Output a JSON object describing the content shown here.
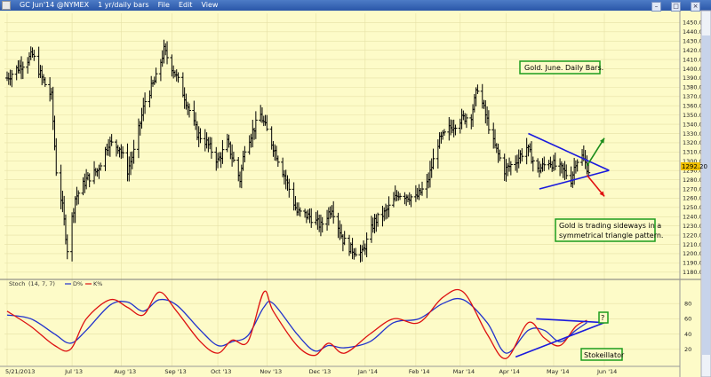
{
  "window": {
    "title": "GC Jun'14 @NYMEX",
    "interval": "1 yr/daily bars",
    "menu": [
      "File",
      "Edit",
      "View"
    ]
  },
  "chart_data": [
    {
      "type": "ohlc",
      "title": "",
      "x_range": [
        "2013-05-21",
        "2014-06-15"
      ],
      "x_labels": [
        "5/21/2013",
        "Jul '13",
        "Aug '13",
        "Sep '13",
        "Oct '13",
        "Nov '13",
        "Dec '13",
        "Jan '14",
        "Feb '14",
        "Mar '14",
        "Apr '14",
        "May '14",
        "Jun '14"
      ],
      "x_label_dates": [
        "2013-05-21",
        "2013-07-01",
        "2013-08-01",
        "2013-09-02",
        "2013-10-01",
        "2013-11-01",
        "2013-12-02",
        "2014-01-02",
        "2014-02-03",
        "2014-03-03",
        "2014-04-01",
        "2014-05-01",
        "2014-06-02"
      ],
      "ylim": [
        1175,
        1460
      ],
      "y_ticks": [
        1180,
        1190,
        1200,
        1210,
        1220,
        1230,
        1240,
        1250,
        1260,
        1270,
        1280,
        1290,
        1300,
        1310,
        1320,
        1330,
        1340,
        1350,
        1360,
        1370,
        1380,
        1390,
        1400,
        1410,
        1420,
        1430,
        1440,
        1450
      ],
      "current_price": "1292.20",
      "price_path": [
        [
          "2013-05-21",
          1390
        ],
        [
          "2013-05-24",
          1395
        ],
        [
          "2013-06-03",
          1410
        ],
        [
          "2013-06-06",
          1415
        ],
        [
          "2013-06-12",
          1390
        ],
        [
          "2013-06-18",
          1370
        ],
        [
          "2013-06-21",
          1290
        ],
        [
          "2013-06-25",
          1250
        ],
        [
          "2013-06-28",
          1205
        ],
        [
          "2013-07-03",
          1260
        ],
        [
          "2013-07-10",
          1280
        ],
        [
          "2013-07-17",
          1290
        ],
        [
          "2013-07-24",
          1320
        ],
        [
          "2013-07-31",
          1315
        ],
        [
          "2013-08-05",
          1290
        ],
        [
          "2013-08-09",
          1310
        ],
        [
          "2013-08-16",
          1365
        ],
        [
          "2013-08-23",
          1390
        ],
        [
          "2013-08-28",
          1420
        ],
        [
          "2013-09-04",
          1395
        ],
        [
          "2013-09-10",
          1370
        ],
        [
          "2013-09-18",
          1330
        ],
        [
          "2013-09-24",
          1320
        ],
        [
          "2013-10-01",
          1300
        ],
        [
          "2013-10-07",
          1320
        ],
        [
          "2013-10-15",
          1280
        ],
        [
          "2013-10-18",
          1315
        ],
        [
          "2013-10-28",
          1350
        ],
        [
          "2013-11-04",
          1320
        ],
        [
          "2013-11-12",
          1285
        ],
        [
          "2013-11-20",
          1245
        ],
        [
          "2013-11-28",
          1240
        ],
        [
          "2013-12-05",
          1230
        ],
        [
          "2013-12-12",
          1250
        ],
        [
          "2013-12-19",
          1215
        ],
        [
          "2013-12-24",
          1205
        ],
        [
          "2013-12-31",
          1200
        ],
        [
          "2014-01-08",
          1235
        ],
        [
          "2014-01-15",
          1245
        ],
        [
          "2014-01-23",
          1265
        ],
        [
          "2014-02-03",
          1260
        ],
        [
          "2014-02-10",
          1275
        ],
        [
          "2014-02-17",
          1320
        ],
        [
          "2014-02-24",
          1335
        ],
        [
          "2014-03-03",
          1345
        ],
        [
          "2014-03-10",
          1350
        ],
        [
          "2014-03-14",
          1380
        ],
        [
          "2014-03-19",
          1350
        ],
        [
          "2014-03-24",
          1320
        ],
        [
          "2014-03-31",
          1290
        ],
        [
          "2014-04-07",
          1300
        ],
        [
          "2014-04-14",
          1315
        ],
        [
          "2014-04-21",
          1290
        ],
        [
          "2014-04-28",
          1300
        ],
        [
          "2014-05-02",
          1295
        ],
        [
          "2014-05-07",
          1290
        ],
        [
          "2014-05-12",
          1280
        ],
        [
          "2014-05-15",
          1300
        ],
        [
          "2014-05-19",
          1305
        ],
        [
          "2014-05-23",
          1290
        ]
      ],
      "triangle": {
        "upper_start": [
          "2014-04-15",
          1330
        ],
        "lower_start": [
          "2014-04-22",
          1270
        ],
        "apex": [
          "2014-06-05",
          1290
        ]
      },
      "arrows": [
        {
          "color": "#1b8c1b",
          "from": [
            "2014-05-22",
            1295
          ],
          "to": [
            "2014-06-02",
            1325
          ]
        },
        {
          "color": "#e01010",
          "from": [
            "2014-05-22",
            1285
          ],
          "to": [
            "2014-06-02",
            1262
          ]
        }
      ],
      "annotations": [
        "Gold. June. Daily Bars.",
        "Gold is trading sideways in a",
        "symmetrical triangle pattern."
      ],
      "colors": {
        "bars": "#000000",
        "triangle": "#1a1add",
        "box_border": "#1c9c1c",
        "price_box": "#f0c000"
      }
    },
    {
      "type": "line",
      "title": "Stoch",
      "params": "(14, 7, 7)",
      "legend": [
        "D%",
        "K%"
      ],
      "ylim": [
        0,
        100
      ],
      "y_ticks": [
        20,
        40,
        60,
        80
      ],
      "series": [
        {
          "name": "D%",
          "color": "#2233cc",
          "values": [
            [
              "2013-05-21",
              65
            ],
            [
              "2013-06-05",
              60
            ],
            [
              "2013-06-20",
              40
            ],
            [
              "2013-06-30",
              28
            ],
            [
              "2013-07-10",
              45
            ],
            [
              "2013-07-25",
              78
            ],
            [
              "2013-08-05",
              82
            ],
            [
              "2013-08-15",
              70
            ],
            [
              "2013-08-25",
              85
            ],
            [
              "2013-09-05",
              78
            ],
            [
              "2013-09-20",
              45
            ],
            [
              "2013-10-01",
              25
            ],
            [
              "2013-10-10",
              30
            ],
            [
              "2013-10-20",
              38
            ],
            [
              "2013-10-30",
              75
            ],
            [
              "2013-11-05",
              80
            ],
            [
              "2013-11-20",
              40
            ],
            [
              "2013-12-01",
              18
            ],
            [
              "2013-12-10",
              25
            ],
            [
              "2013-12-20",
              22
            ],
            [
              "2014-01-05",
              30
            ],
            [
              "2014-01-20",
              55
            ],
            [
              "2014-02-05",
              60
            ],
            [
              "2014-02-20",
              80
            ],
            [
              "2014-03-05",
              85
            ],
            [
              "2014-03-20",
              55
            ],
            [
              "2014-04-01",
              15
            ],
            [
              "2014-04-15",
              45
            ],
            [
              "2014-04-25",
              45
            ],
            [
              "2014-05-05",
              30
            ],
            [
              "2014-05-15",
              45
            ],
            [
              "2014-05-22",
              55
            ]
          ]
        },
        {
          "name": "K%",
          "color": "#dd1111",
          "values": [
            [
              "2013-05-21",
              70
            ],
            [
              "2013-06-05",
              50
            ],
            [
              "2013-06-20",
              25
            ],
            [
              "2013-06-30",
              20
            ],
            [
              "2013-07-10",
              60
            ],
            [
              "2013-07-25",
              85
            ],
            [
              "2013-08-05",
              75
            ],
            [
              "2013-08-15",
              65
            ],
            [
              "2013-08-25",
              95
            ],
            [
              "2013-09-05",
              70
            ],
            [
              "2013-09-20",
              30
            ],
            [
              "2013-10-01",
              15
            ],
            [
              "2013-10-10",
              32
            ],
            [
              "2013-10-20",
              30
            ],
            [
              "2013-10-30",
              95
            ],
            [
              "2013-11-05",
              70
            ],
            [
              "2013-11-20",
              25
            ],
            [
              "2013-12-01",
              12
            ],
            [
              "2013-12-10",
              28
            ],
            [
              "2013-12-20",
              15
            ],
            [
              "2014-01-05",
              40
            ],
            [
              "2014-01-20",
              60
            ],
            [
              "2014-02-05",
              55
            ],
            [
              "2014-02-20",
              88
            ],
            [
              "2014-03-05",
              95
            ],
            [
              "2014-03-20",
              40
            ],
            [
              "2014-04-01",
              8
            ],
            [
              "2014-04-15",
              55
            ],
            [
              "2014-04-25",
              35
            ],
            [
              "2014-05-05",
              25
            ],
            [
              "2014-05-15",
              50
            ],
            [
              "2014-05-22",
              58
            ]
          ]
        }
      ],
      "triangle": {
        "upper_start": [
          "2014-04-20",
          60
        ],
        "lower_start": [
          "2014-04-07",
          10
        ],
        "apex": [
          "2014-06-02",
          55
        ]
      },
      "annotations": [
        "?",
        "Stokeillator"
      ]
    }
  ]
}
